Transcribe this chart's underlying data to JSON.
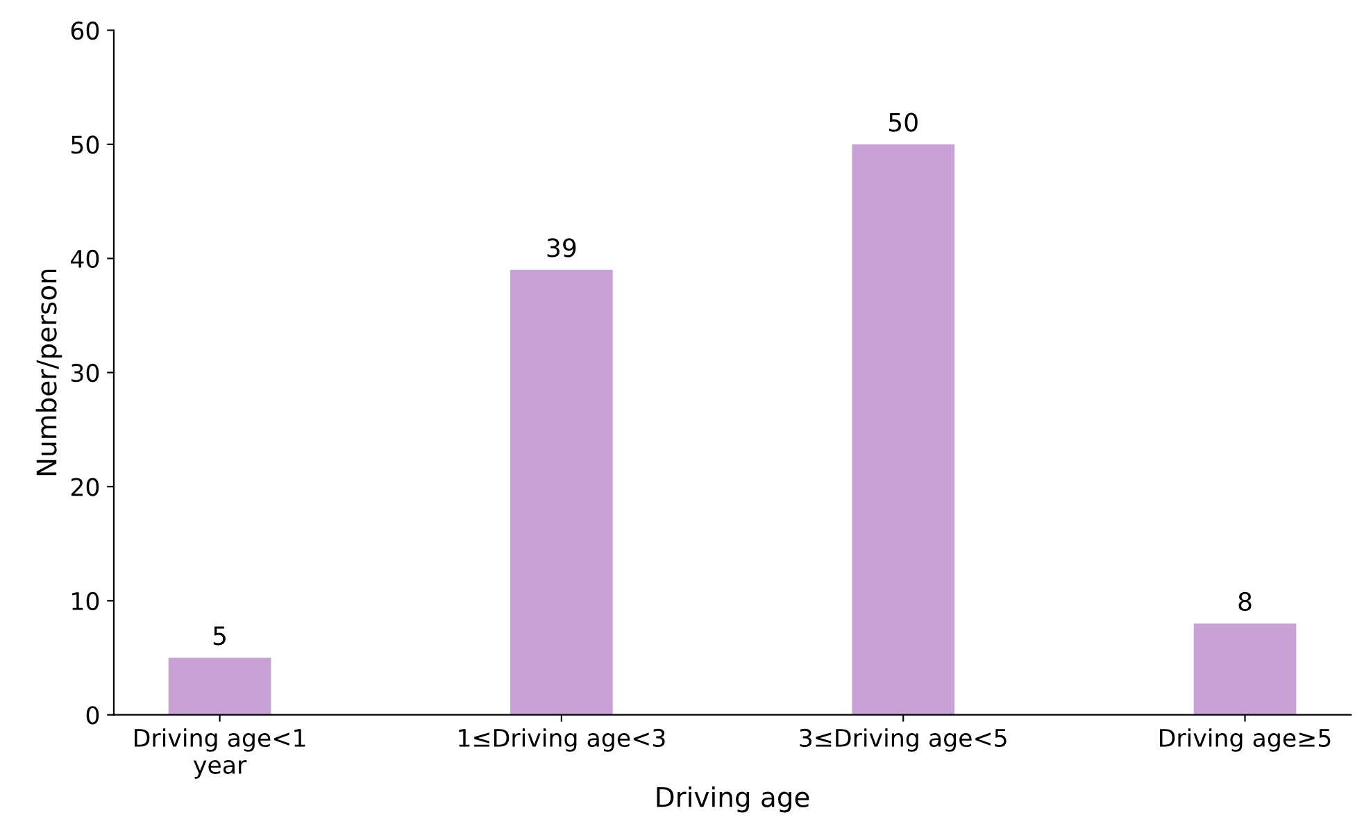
{
  "chart_data": {
    "type": "bar",
    "xlabel": "Driving age",
    "ylabel": "Number/person",
    "categories": [
      "Driving age<1\nyear",
      "1≤Driving age<3",
      "3≤Driving age<5",
      "Driving age≥5"
    ],
    "values": [
      5,
      39,
      50,
      8
    ],
    "color": "#c8a2d4",
    "ylim": [
      0,
      60
    ],
    "yticks": [
      0,
      10,
      20,
      30,
      40,
      50,
      60
    ],
    "grid": false,
    "data_labels": true
  }
}
